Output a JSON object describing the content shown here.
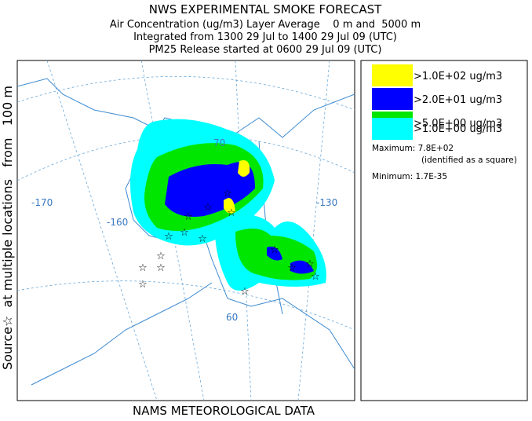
{
  "header": {
    "title": "NWS EXPERIMENTAL SMOKE FORECAST",
    "lines": [
      "Air Concentration (ug/m3) Layer Average    0 m and  5000 m",
      "Integrated from 1300 29 Jul to 1400 29 Jul 09 (UTC)",
      "PM25 Release started at 0600 29 Jul 09 (UTC)"
    ]
  },
  "side_label": "Source☆  at multiple locations   from   100 m",
  "footer": "NAMS METEOROLOGICAL DATA",
  "legend": {
    "entries": [
      ">1.0E+02 ug/m3",
      ">2.0E+01 ug/m3",
      ">5.0E+00 ug/m3",
      ">1.0E+00 ug/m3"
    ],
    "maximum": "Maximum: 7.8E+02",
    "identified": "(identified as a square)",
    "minimum": "Minimum: 1.7E-35"
  },
  "map_labels": [
    "-170",
    "-160",
    "-130",
    "70",
    "60"
  ]
}
